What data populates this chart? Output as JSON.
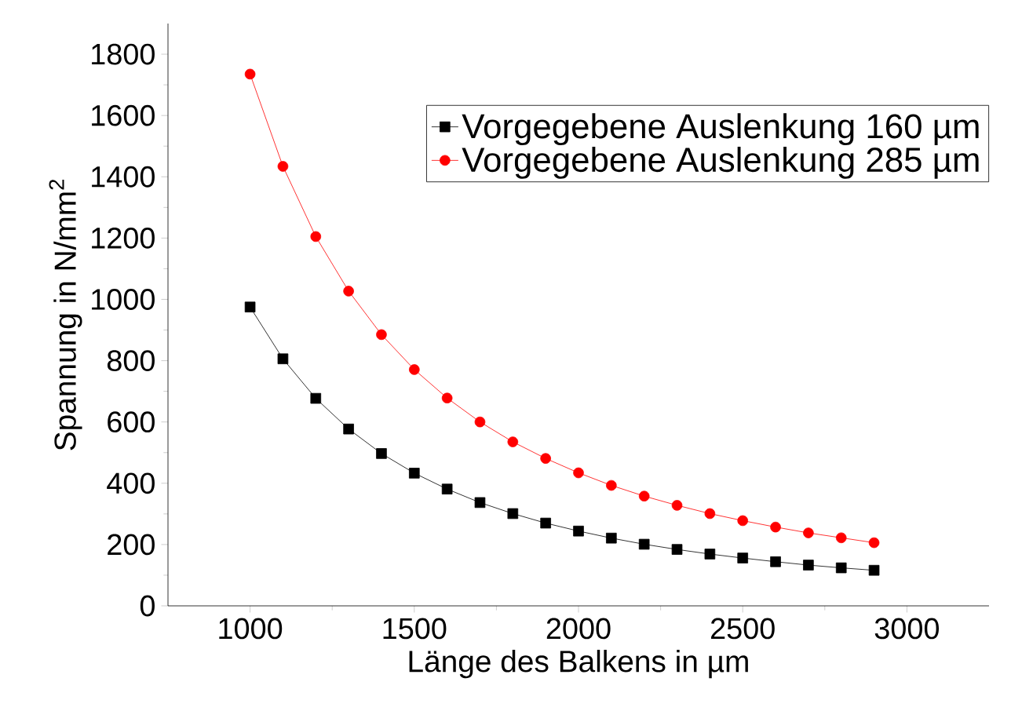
{
  "chart_data": {
    "type": "line",
    "xlabel": "Länge des Balkens in µm",
    "ylabel": "Spannung in N/mm$^{2}$",
    "x": [
      1000,
      1100,
      1200,
      1300,
      1400,
      1500,
      1600,
      1700,
      1800,
      1900,
      2000,
      2100,
      2200,
      2300,
      2400,
      2500,
      2600,
      2700,
      2800,
      2900
    ],
    "series": [
      {
        "name": "Vorgegebene Auslenkung 160 µm",
        "color": "#000000",
        "marker": "square",
        "values": [
          975,
          806,
          677,
          577,
          497,
          433,
          381,
          337,
          301,
          270,
          244,
          221,
          201,
          184,
          169,
          156,
          144,
          133,
          124,
          116
        ]
      },
      {
        "name": "Vorgegebene Auslenkung 285 µm",
        "color": "#ff0000",
        "marker": "circle",
        "values": [
          1735,
          1434,
          1205,
          1027,
          885,
          771,
          678,
          600,
          535,
          481,
          434,
          393,
          358,
          328,
          301,
          278,
          257,
          238,
          222,
          206
        ]
      }
    ],
    "xlim": [
      750,
      3250
    ],
    "ylim": [
      0,
      1900
    ],
    "xticks": [
      1000,
      1500,
      2000,
      2500,
      3000
    ],
    "yticks": [
      0,
      200,
      400,
      600,
      800,
      1000,
      1200,
      1400,
      1600,
      1800
    ],
    "grid": false,
    "legend": "top right",
    "line_style": "solid"
  }
}
